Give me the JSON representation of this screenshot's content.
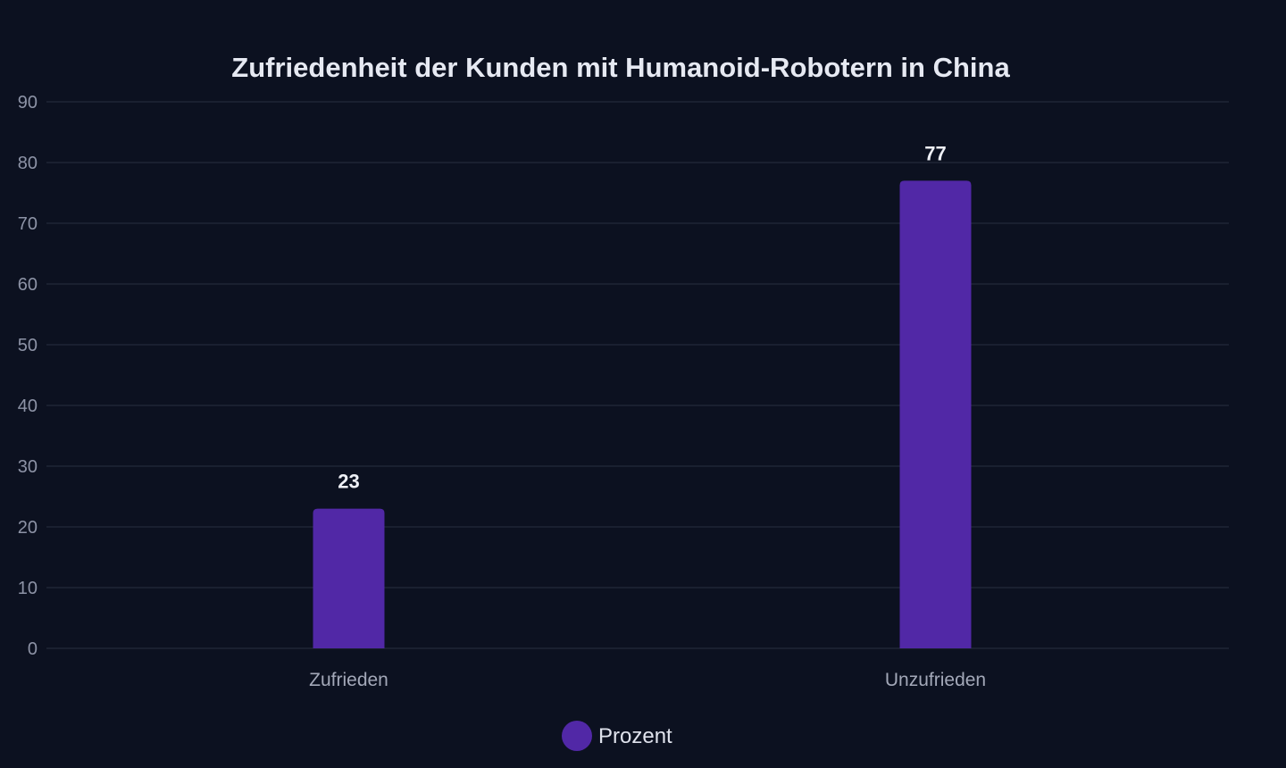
{
  "colors": {
    "background": "#0c1120",
    "bar": "#5128a6",
    "grid": "#1f2535"
  },
  "chart_data": {
    "type": "bar",
    "title": "Zufriedenheit der Kunden mit Humanoid-Robotern in China",
    "xlabel": "",
    "ylabel": "",
    "categories": [
      "Zufrieden",
      "Unzufrieden"
    ],
    "series": [
      {
        "name": "Prozent",
        "values": [
          23,
          77
        ],
        "color": "#5128a6"
      }
    ],
    "y_ticks": [
      0,
      10,
      20,
      30,
      40,
      50,
      60,
      70,
      80,
      90
    ],
    "ylim": [
      0,
      90
    ],
    "grid": true,
    "data_labels": true,
    "legend_position": "bottom-center"
  }
}
